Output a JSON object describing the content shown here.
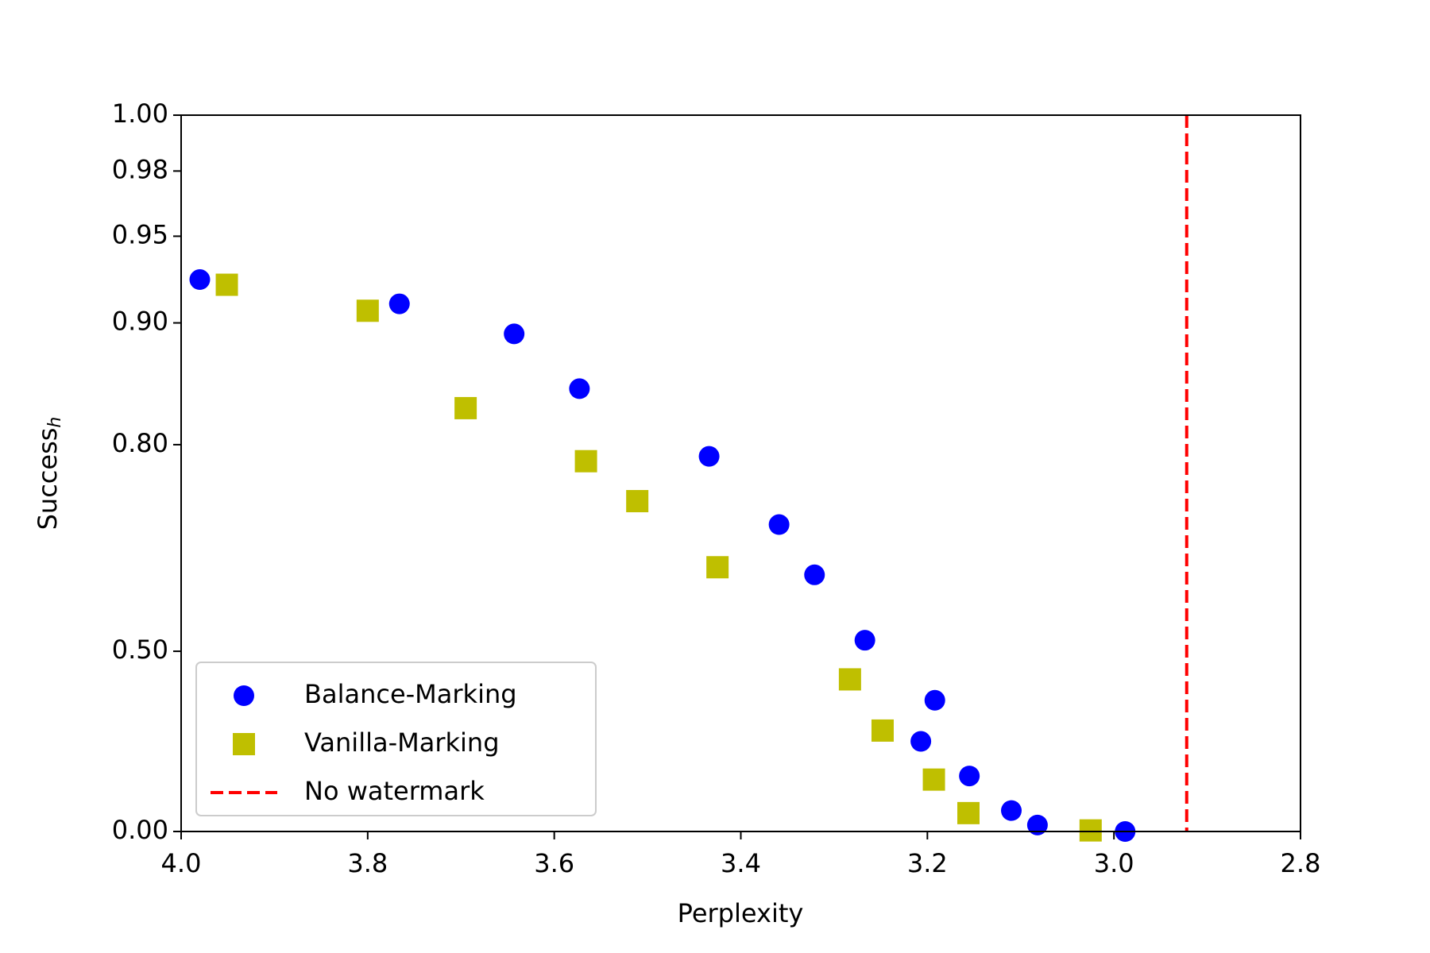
{
  "chart_data": {
    "type": "scatter",
    "x_label": "Perplexity",
    "y_label": "Success",
    "y_label_subscript": "h",
    "xlim": [
      4.0,
      2.8
    ],
    "xticks": [
      {
        "value": 4.0,
        "label": "4.0"
      },
      3.8,
      3.6,
      3.4,
      3.2,
      {
        "value": 3.0,
        "label": "3.0"
      },
      2.8
    ],
    "ylim": [
      0,
      1
    ],
    "yscale": "piecewise-linear",
    "yticks": [
      {
        "value": 0,
        "label": "0.00"
      },
      {
        "value": 0.5,
        "label": "0.50"
      },
      {
        "value": 0.8,
        "label": "0.80"
      },
      {
        "value": 0.9,
        "label": "0.90"
      },
      {
        "value": 0.95,
        "label": "0.95"
      },
      {
        "value": 0.98,
        "label": "0.98"
      },
      {
        "value": 1,
        "label": "1.00"
      }
    ],
    "legend": "lower left",
    "series": [
      {
        "name": "Balance-Marking",
        "color": "#0000ff",
        "marker": "circle",
        "x": [
          3.98,
          3.766,
          3.643,
          3.573,
          3.434,
          3.359,
          3.321,
          3.267,
          3.192,
          3.207,
          3.155,
          3.11,
          3.082,
          2.988
        ],
        "values": [
          0.925,
          0.911,
          0.891,
          0.846,
          0.783,
          0.684,
          0.611,
          0.516,
          0.364,
          0.25,
          0.154,
          0.058,
          0.018,
          0.0
        ]
      },
      {
        "name": "Vanilla-Marking",
        "color": "#bfbf00",
        "marker": "square",
        "x": [
          3.951,
          3.8,
          3.695,
          3.566,
          3.511,
          3.425,
          3.283,
          3.248,
          3.193,
          3.156,
          3.025
        ],
        "values": [
          0.922,
          0.907,
          0.83,
          0.776,
          0.718,
          0.622,
          0.422,
          0.28,
          0.144,
          0.051,
          0.003
        ]
      }
    ],
    "vlines": [
      {
        "name": "No watermark",
        "x": 2.922,
        "color": "#ff0000",
        "style": "dashed"
      }
    ]
  }
}
